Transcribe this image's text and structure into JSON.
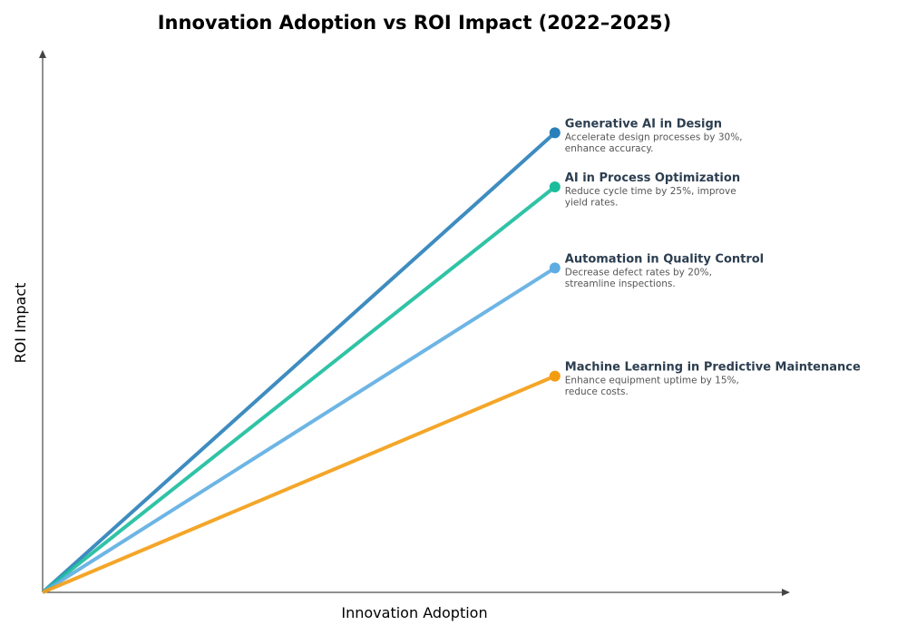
{
  "chart_data": {
    "type": "line",
    "title": "Innovation Adoption vs ROI Impact (2022–2025)",
    "xlabel": "Innovation Adoption",
    "ylabel": "ROI Impact",
    "xlim": [
      0,
      10.2
    ],
    "ylim": [
      0,
      10
    ],
    "grid": false,
    "ticks": false,
    "series": [
      {
        "name": "Generative AI in Design",
        "description": "Accelerate design processes by 30%,|enhance accuracy.",
        "x": [
          0,
          7
        ],
        "y": [
          0,
          8.5
        ],
        "color": "#2980b9"
      },
      {
        "name": "AI in Process Optimization",
        "description": "Reduce cycle time by 25%, improve|yield rates.",
        "x": [
          0,
          7
        ],
        "y": [
          0,
          7.5
        ],
        "color": "#1abc9c"
      },
      {
        "name": "Automation in Quality Control",
        "description": "Decrease defect rates by 20%,|streamline inspections.",
        "x": [
          0,
          7
        ],
        "y": [
          0,
          6
        ],
        "color": "#5dade2"
      },
      {
        "name": "Machine Learning in Predictive Maintenance",
        "description": "Enhance equipment uptime by 15%,|reduce costs.",
        "x": [
          0,
          7
        ],
        "y": [
          0,
          4
        ],
        "color": "#f39c12"
      }
    ]
  }
}
